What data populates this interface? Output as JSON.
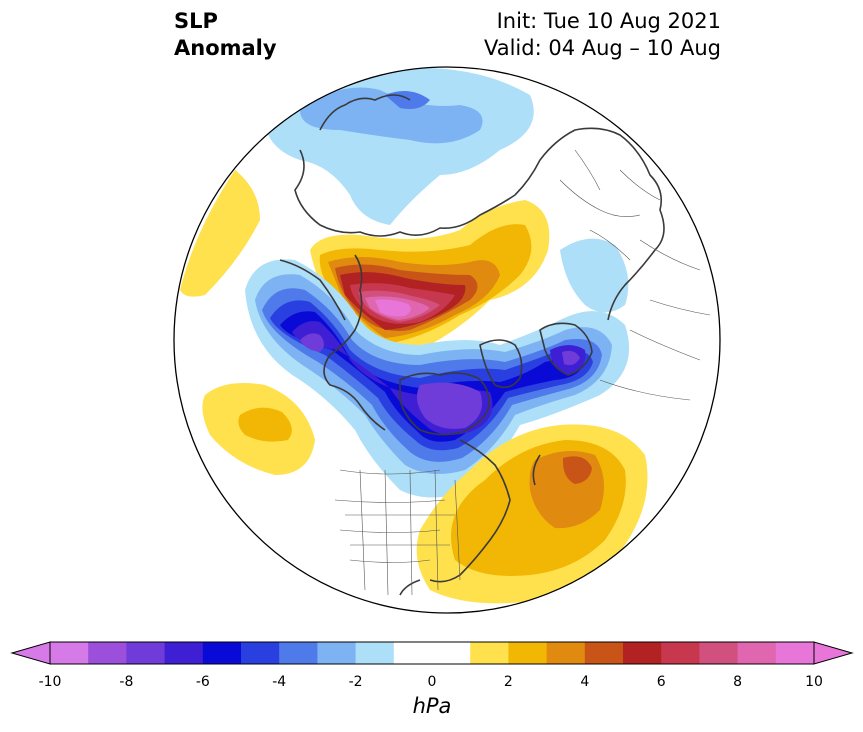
{
  "title": {
    "variable_line1": "SLP",
    "variable_line2": "Anomaly",
    "init": "Init: Tue 10 Aug 2021",
    "valid": "Valid: 04 Aug – 10 Aug"
  },
  "colorbar": {
    "unit": "hPa",
    "levels": [
      -10,
      -9,
      -8,
      -7,
      -6,
      -5,
      -4,
      -3,
      -2,
      -1,
      1,
      2,
      3,
      4,
      5,
      6,
      7,
      8,
      9,
      10
    ],
    "tick_labels": [
      "-10",
      "-8",
      "-6",
      "-4",
      "-2",
      "0",
      "2",
      "4",
      "6",
      "8",
      "10"
    ],
    "colors": [
      "#d67ae8",
      "#9b4fdb",
      "#6f3bd9",
      "#3f1fd4",
      "#0a0ad6",
      "#2a3fe0",
      "#4f7aea",
      "#7db3f2",
      "#addff9",
      "#ffffff",
      "#ffe14d",
      "#f2b705",
      "#e08a10",
      "#c85418",
      "#b22222",
      "#c7384e",
      "#d1507e",
      "#e066b0",
      "#e876d8"
    ],
    "extend_low_color": "#d67ae8",
    "extend_high_color": "#e876d8"
  },
  "map": {
    "projection": "north-polar-stereographic",
    "boundaries": "coastlines, countries, US states"
  }
}
